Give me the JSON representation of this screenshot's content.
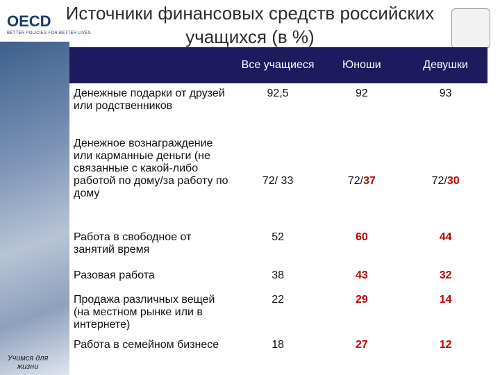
{
  "header": {
    "logo": "OECD",
    "tagline": "BETTER POLICIES FOR BETTER LIVES",
    "title": "Источники финансовых средств российских учащихся (в %)"
  },
  "sidebar": {
    "caption": "Учимся для жизни"
  },
  "table": {
    "columns": [
      "Все учащиеся",
      "Юноши",
      "Девушки"
    ],
    "rows": [
      {
        "label": "Денежные подарки от друзей или родственников",
        "cells": [
          [
            {
              "text": "92,5"
            }
          ],
          [
            {
              "text": "92"
            }
          ],
          [
            {
              "text": "93"
            }
          ]
        ]
      },
      {
        "label": "Денежное вознаграждение или карманные деньги (не связанные с какой-либо работой по дому/за работу по дому",
        "cells": [
          [
            {
              "text": "72/ 33"
            }
          ],
          [
            {
              "text": "72/"
            },
            {
              "text": "37",
              "emphasis": true
            }
          ],
          [
            {
              "text": "72/"
            },
            {
              "text": "30",
              "emphasis": true
            }
          ]
        ]
      },
      {
        "label": "Работа в свободное от занятий время",
        "cells": [
          [
            {
              "text": "52"
            }
          ],
          [
            {
              "text": "60",
              "emphasis": true
            }
          ],
          [
            {
              "text": "44",
              "emphasis": true
            }
          ]
        ]
      },
      {
        "label": "Разовая работа",
        "cells": [
          [
            {
              "text": "38"
            }
          ],
          [
            {
              "text": "43",
              "emphasis": true
            }
          ],
          [
            {
              "text": "32",
              "emphasis": true
            }
          ]
        ]
      },
      {
        "label": "Продажа различных вещей (на местном рынке или в интернете)",
        "cells": [
          [
            {
              "text": "22"
            }
          ],
          [
            {
              "text": "29",
              "emphasis": true
            }
          ],
          [
            {
              "text": "14",
              "emphasis": true
            }
          ]
        ]
      },
      {
        "label": "Работа в семейном бизнесе",
        "cells": [
          [
            {
              "text": "18"
            }
          ],
          [
            {
              "text": "27",
              "emphasis": true
            }
          ],
          [
            {
              "text": "12",
              "emphasis": true
            }
          ]
        ]
      }
    ]
  }
}
